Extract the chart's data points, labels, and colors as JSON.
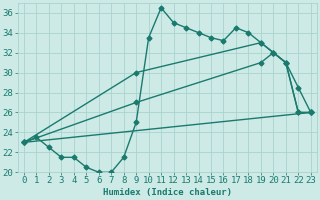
{
  "line1_x": [
    0,
    1,
    2,
    3,
    4,
    5,
    6,
    7,
    8,
    9,
    10,
    11,
    12,
    13,
    14,
    15,
    16,
    17,
    18,
    19,
    20,
    21,
    22,
    23
  ],
  "line1_y": [
    23.0,
    23.5,
    22.5,
    21.5,
    21.5,
    20.5,
    20.0,
    20.0,
    21.5,
    25.0,
    33.5,
    36.5,
    35.0,
    34.5,
    34.0,
    33.5,
    33.2,
    34.5,
    34.0,
    33.0,
    32.0,
    31.0,
    28.5,
    26.0
  ],
  "line2_x": [
    0,
    9,
    19,
    20,
    21,
    22,
    23
  ],
  "line2_y": [
    23.0,
    30.0,
    33.0,
    32.0,
    31.0,
    26.0,
    26.0
  ],
  "line3_x": [
    0,
    9,
    19,
    20,
    21,
    22,
    23
  ],
  "line3_y": [
    23.0,
    27.0,
    31.0,
    32.0,
    31.0,
    26.0,
    26.0
  ],
  "line4_x": [
    0,
    23
  ],
  "line4_y": [
    23.0,
    26.0
  ],
  "color": "#1a7a6e",
  "bg_color": "#cdeae6",
  "grid_color": "#a8d4ce",
  "xlabel": "Humidex (Indice chaleur)",
  "ylim": [
    20,
    37
  ],
  "xlim": [
    -0.5,
    23.5
  ],
  "yticks": [
    20,
    22,
    24,
    26,
    28,
    30,
    32,
    34,
    36
  ],
  "xticks": [
    0,
    1,
    2,
    3,
    4,
    5,
    6,
    7,
    8,
    9,
    10,
    11,
    12,
    13,
    14,
    15,
    16,
    17,
    18,
    19,
    20,
    21,
    22,
    23
  ],
  "marker": "D",
  "markersize": 2.5,
  "linewidth": 1.0,
  "fontsize": 6.5
}
